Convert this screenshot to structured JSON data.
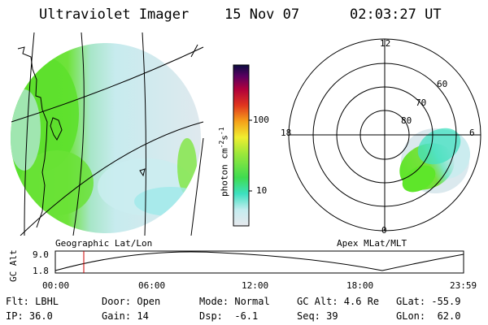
{
  "header": {
    "instrument": "Ultraviolet Imager",
    "date": "15 Nov 07",
    "time": "02:03:27 UT"
  },
  "colorbar": {
    "label": "photon cm",
    "exp1": "-2",
    "s": "s",
    "exp2": "-1",
    "ticks": [
      "100",
      "10"
    ]
  },
  "left_panel": {
    "caption": "Geographic Lat/Lon"
  },
  "right_panel": {
    "caption": "Apex MLat/MLT",
    "mlt_labels": [
      "12",
      "18",
      "6",
      "0"
    ],
    "mlat_labels": [
      "60",
      "70",
      "80"
    ]
  },
  "timeline": {
    "ylabel": "GC Alt",
    "y_top": "9.0",
    "y_bottom": "1.8",
    "time_ticks": [
      "00:00",
      "06:00",
      "12:00",
      "18:00",
      "23:59"
    ],
    "cursor_color": "#cc0000"
  },
  "info": {
    "row1": [
      "Flt: LBHL",
      "Door: Open",
      "Mode: Normal",
      "GC Alt: 4.6 Re",
      "GLat: -55.9"
    ],
    "row2": [
      "IP: 36.0",
      "Gain: 14",
      "Dsp:  -6.1",
      "Seq: 39",
      "GLon:  62.0"
    ]
  },
  "colors": {
    "green": "#5ee62a",
    "teal": "#38e0b8",
    "lightcyan": "#bdebef",
    "paleblue": "#dde9ef"
  }
}
